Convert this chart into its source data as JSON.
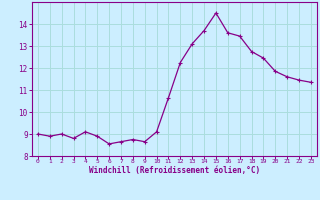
{
  "x": [
    0,
    1,
    2,
    3,
    4,
    5,
    6,
    7,
    8,
    9,
    10,
    11,
    12,
    13,
    14,
    15,
    16,
    17,
    18,
    19,
    20,
    21,
    22,
    23
  ],
  "y": [
    9.0,
    8.9,
    9.0,
    8.8,
    9.1,
    8.9,
    8.55,
    8.65,
    8.75,
    8.65,
    9.1,
    10.65,
    12.25,
    13.1,
    13.7,
    14.5,
    13.6,
    13.45,
    12.75,
    12.45,
    11.85,
    11.6,
    11.45,
    11.35
  ],
  "line_color": "#880088",
  "marker_color": "#880088",
  "bg_color": "#cceeff",
  "grid_color": "#aadddd",
  "xlabel": "Windchill (Refroidissement éolien,°C)",
  "xlabel_color": "#880088",
  "tick_color": "#880088",
  "spine_color": "#880088",
  "ylim": [
    8,
    15
  ],
  "xlim": [
    -0.5,
    23.5
  ],
  "yticks": [
    8,
    9,
    10,
    11,
    12,
    13,
    14
  ],
  "xticks": [
    0,
    1,
    2,
    3,
    4,
    5,
    6,
    7,
    8,
    9,
    10,
    11,
    12,
    13,
    14,
    15,
    16,
    17,
    18,
    19,
    20,
    21,
    22,
    23
  ],
  "figsize": [
    3.2,
    2.0
  ],
  "dpi": 100
}
